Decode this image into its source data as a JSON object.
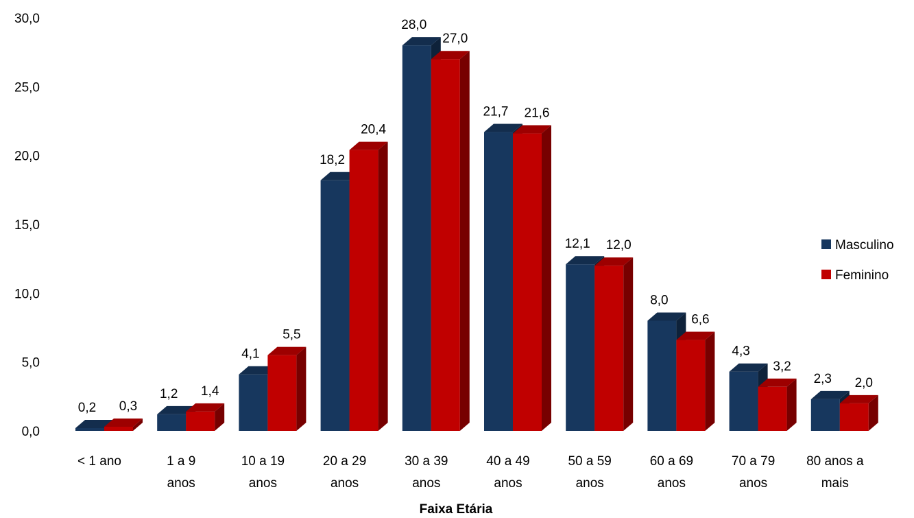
{
  "chart_data": {
    "type": "bar",
    "title": "",
    "xlabel": "Faixa Etária",
    "ylabel": "",
    "ylim": [
      0,
      30
    ],
    "yticks": [
      "0,0",
      "5,0",
      "10,0",
      "15,0",
      "20,0",
      "25,0",
      "30,0"
    ],
    "categories": [
      [
        "< 1 ano"
      ],
      [
        "1 a 9",
        "anos"
      ],
      [
        "10 a 19",
        "anos"
      ],
      [
        "20 a 29",
        "anos"
      ],
      [
        "30 a 39",
        "anos"
      ],
      [
        "40 a 49",
        "anos"
      ],
      [
        "50 a 59",
        "anos"
      ],
      [
        "60 a 69",
        "anos"
      ],
      [
        "70 a 79",
        "anos"
      ],
      [
        "80 anos a",
        "mais"
      ]
    ],
    "series": [
      {
        "name": "Masculino",
        "color": "#17375e",
        "values": [
          0.2,
          1.2,
          4.1,
          18.2,
          28.0,
          21.7,
          12.1,
          8.0,
          4.3,
          2.3
        ],
        "labels": [
          "0,2",
          "1,2",
          "4,1",
          "18,2",
          "28,0",
          "21,7",
          "12,1",
          "8,0",
          "4,3",
          "2,3"
        ]
      },
      {
        "name": "Feminino",
        "color": "#c00000",
        "values": [
          0.3,
          1.4,
          5.5,
          20.4,
          27.0,
          21.6,
          12.0,
          6.6,
          3.2,
          2.0
        ],
        "labels": [
          "0,3",
          "1,4",
          "5,5",
          "20,4",
          "27,0",
          "21,6",
          "12,0",
          "6,6",
          "3,2",
          "2,0"
        ]
      }
    ],
    "legend": "right",
    "grid": false,
    "style": "3d-column"
  }
}
